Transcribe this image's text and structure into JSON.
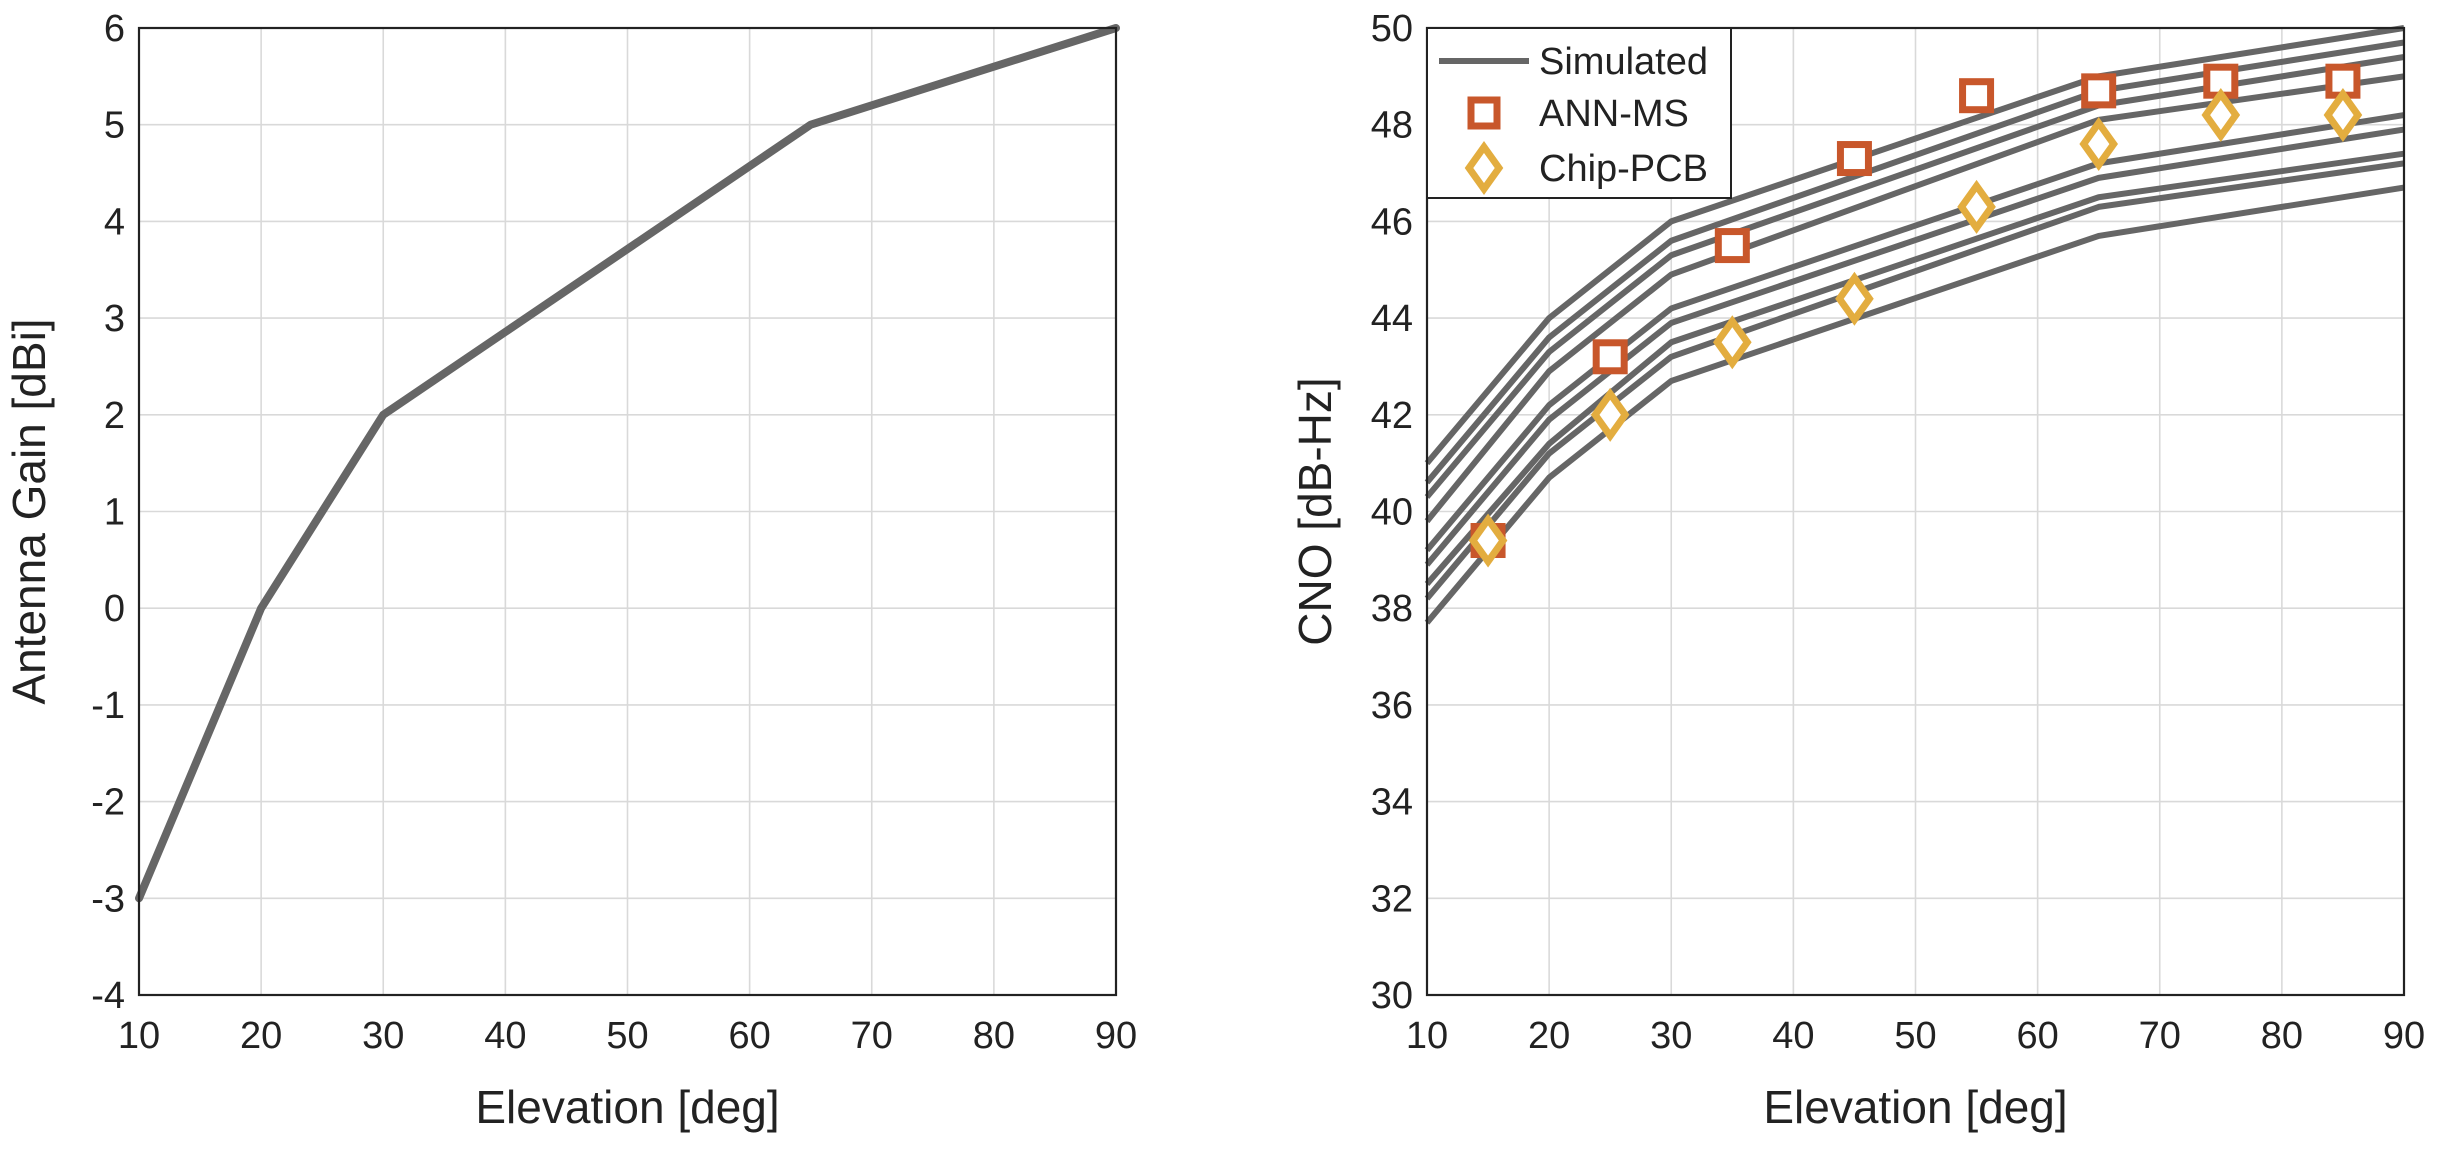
{
  "chart_data": [
    {
      "type": "line",
      "xlabel": "Elevation [deg]",
      "ylabel": "Antenna Gain [dBi]",
      "xlim": [
        10,
        90
      ],
      "ylim": [
        -4,
        6
      ],
      "xticks": [
        10,
        20,
        30,
        40,
        50,
        60,
        70,
        80,
        90
      ],
      "yticks": [
        -4,
        -3,
        -2,
        -1,
        0,
        1,
        2,
        3,
        4,
        5,
        6
      ],
      "grid": true,
      "colors": {
        "line": "#666666"
      },
      "series": [
        {
          "x": [
            10,
            20,
            30,
            65,
            90
          ],
          "y": [
            -3,
            0,
            2,
            5,
            6
          ]
        }
      ]
    },
    {
      "type": "line",
      "xlabel": "Elevation [deg]",
      "ylabel": "CNO [dB-Hz]",
      "xlim": [
        10,
        90
      ],
      "ylim": [
        30,
        50
      ],
      "xticks": [
        10,
        20,
        30,
        40,
        50,
        60,
        70,
        80,
        90
      ],
      "yticks": [
        30,
        32,
        34,
        36,
        38,
        40,
        42,
        44,
        46,
        48,
        50
      ],
      "grid": true,
      "legend_position": "top-left",
      "colors": {
        "simulated": "#666666",
        "ann_ms": "#c8572b",
        "chip_pcb": "#e3ad3f"
      },
      "simulated_x": [
        10,
        20,
        30,
        65,
        90
      ],
      "series": [
        {
          "name": "Simulated",
          "kind": "line",
          "y": [
            41.0,
            44.0,
            46.0,
            49.0,
            50.0
          ]
        },
        {
          "kind": "line",
          "y": [
            40.6,
            43.6,
            45.6,
            48.7,
            49.7
          ]
        },
        {
          "kind": "line",
          "y": [
            40.3,
            43.3,
            45.3,
            48.4,
            49.4
          ]
        },
        {
          "kind": "line",
          "y": [
            39.8,
            42.9,
            44.9,
            48.1,
            49.0
          ]
        },
        {
          "kind": "line",
          "y": [
            39.2,
            42.2,
            44.2,
            47.2,
            48.2
          ]
        },
        {
          "kind": "line",
          "y": [
            38.9,
            41.9,
            43.9,
            46.9,
            47.9
          ]
        },
        {
          "kind": "line",
          "y": [
            38.5,
            41.4,
            43.5,
            46.5,
            47.4
          ]
        },
        {
          "kind": "line",
          "y": [
            38.2,
            41.2,
            43.2,
            46.3,
            47.2
          ]
        },
        {
          "kind": "line",
          "y": [
            37.7,
            40.7,
            42.7,
            45.7,
            46.7
          ]
        },
        {
          "name": "ANN-MS",
          "kind": "marker-square",
          "x": [
            15,
            25,
            35,
            45,
            55,
            65,
            75,
            85
          ],
          "y": [
            39.4,
            43.2,
            45.5,
            47.3,
            48.6,
            48.7,
            48.9,
            48.9
          ]
        },
        {
          "name": "Chip-PCB",
          "kind": "marker-diamond",
          "x": [
            15,
            25,
            35,
            45,
            55,
            65,
            75,
            85
          ],
          "y": [
            39.4,
            42.0,
            43.5,
            44.4,
            46.3,
            47.6,
            48.2,
            48.2
          ]
        }
      ]
    }
  ]
}
